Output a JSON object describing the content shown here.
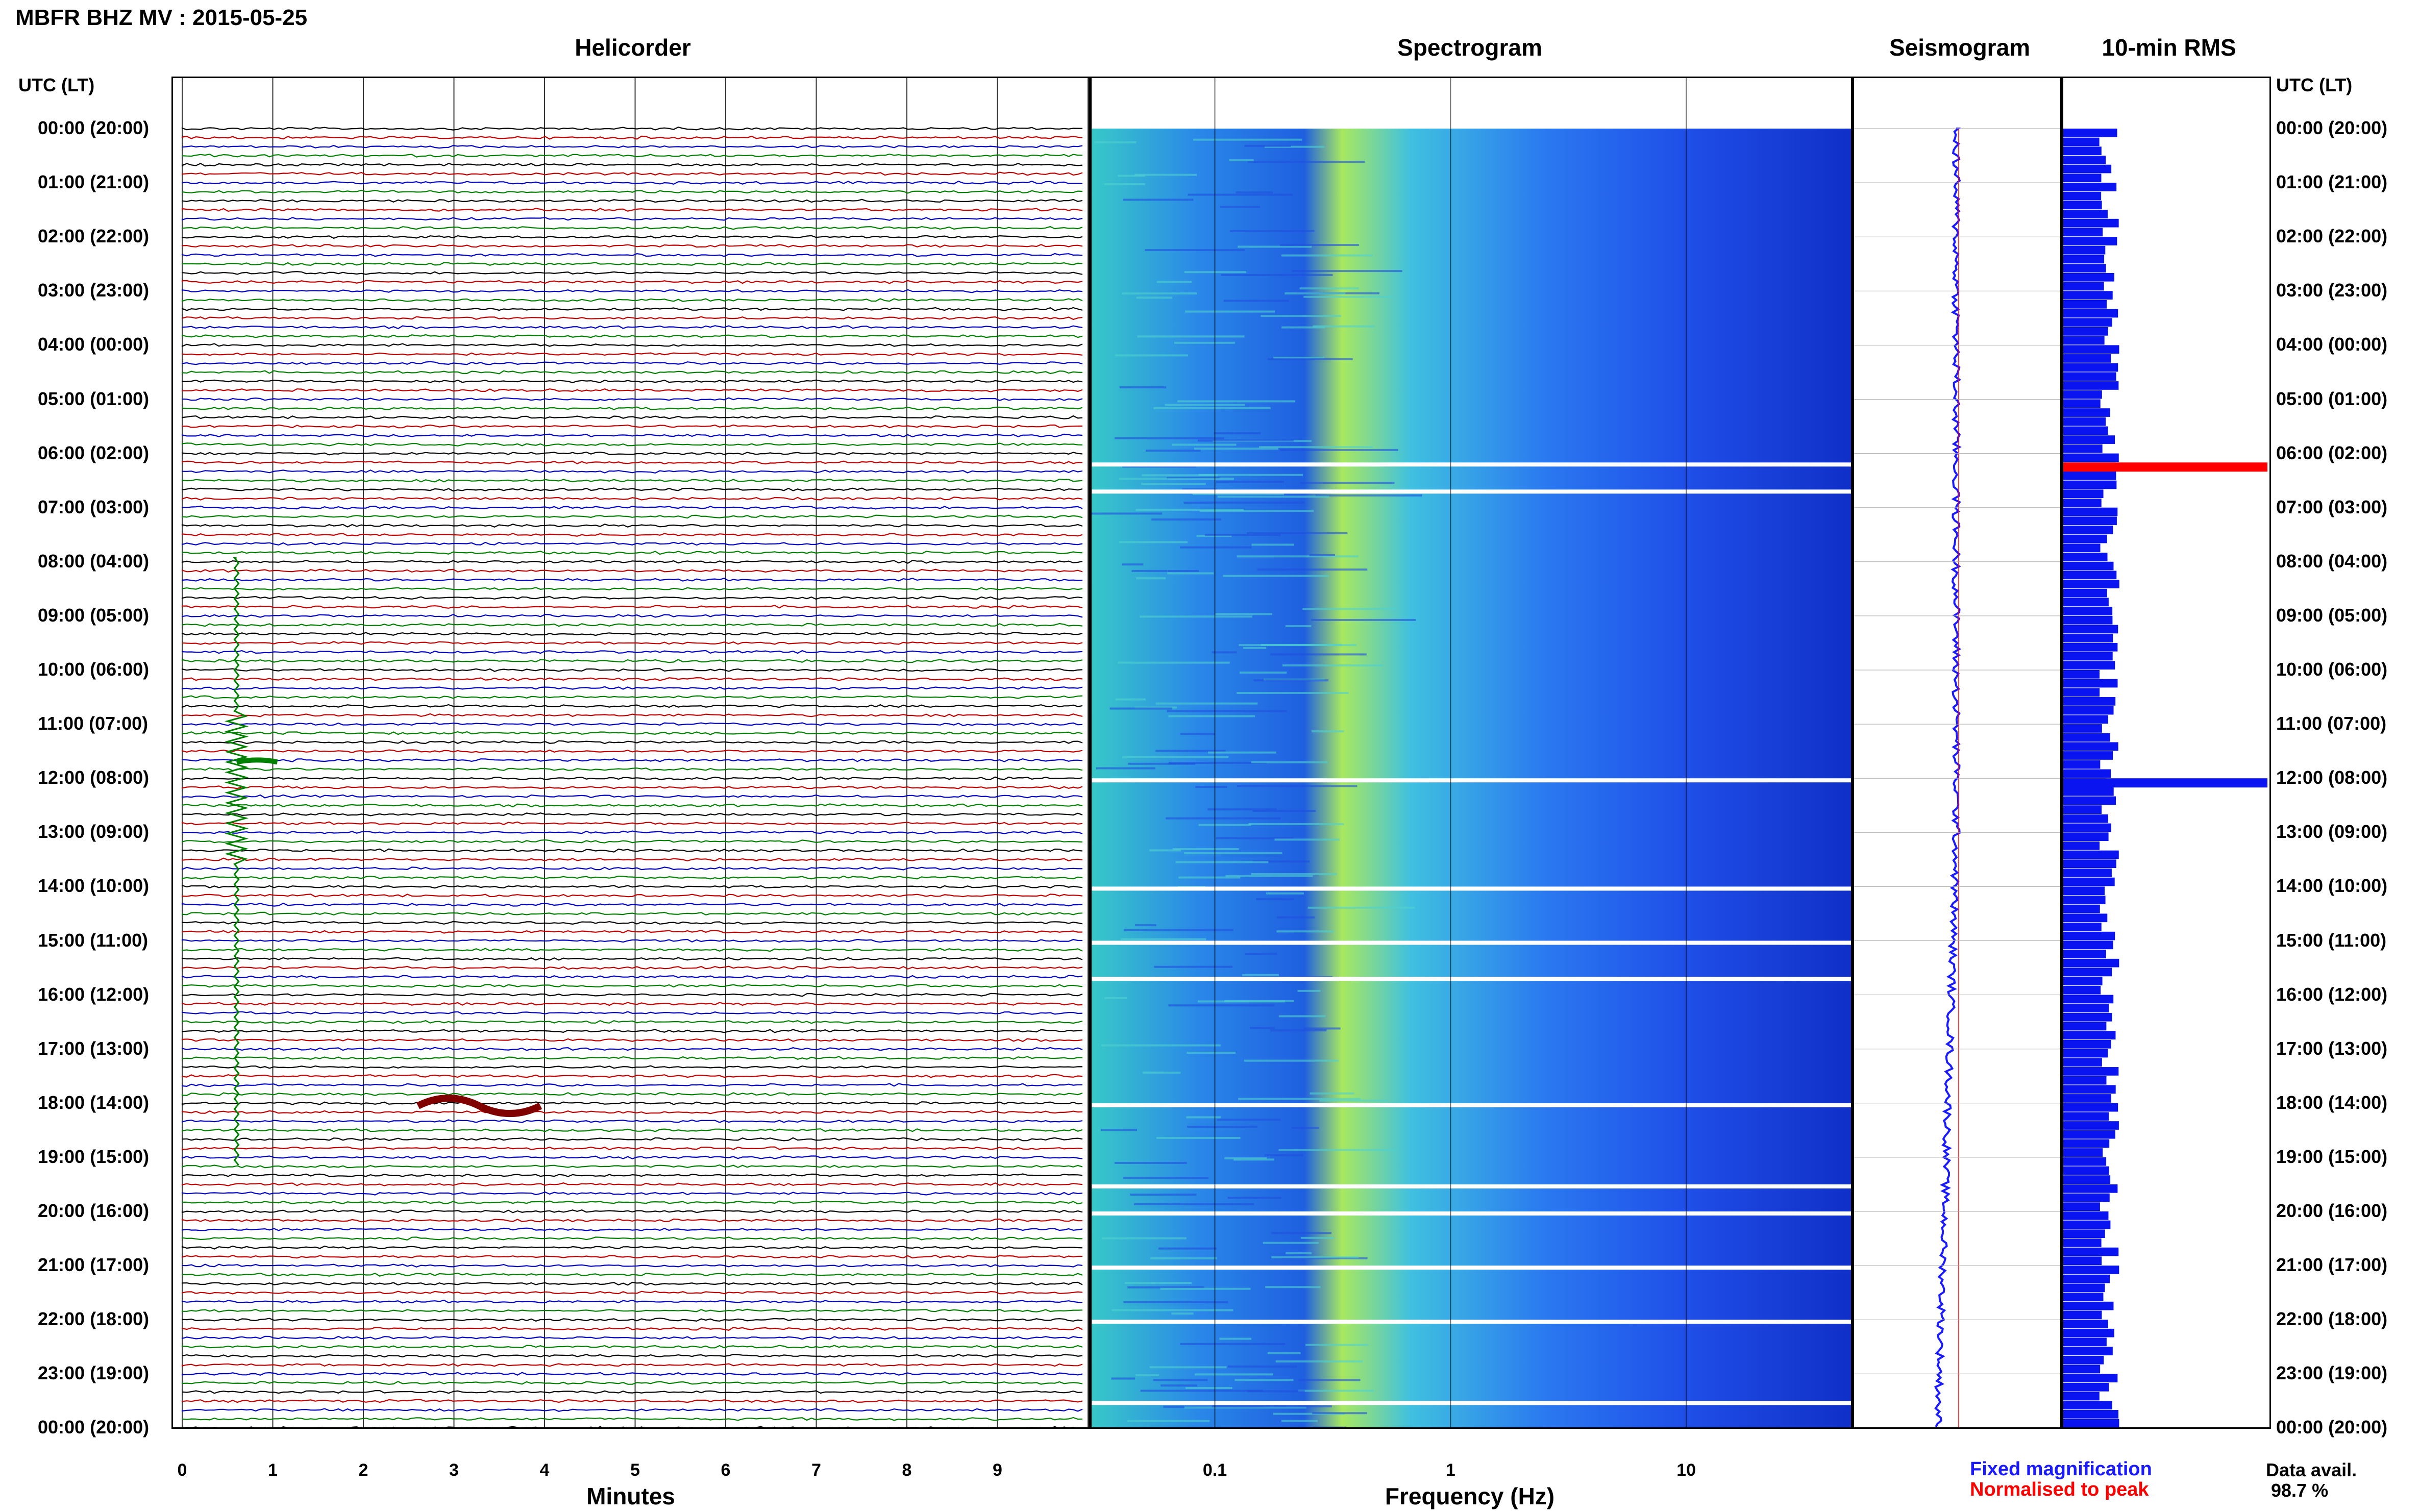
{
  "header": {
    "title": "MBFR BHZ MV : 2015-05-25"
  },
  "panels": {
    "helicorder": "Helicorder",
    "spectrogram": "Spectrogram",
    "seismogram": "Seismogram",
    "rms": "10-min RMS"
  },
  "axes": {
    "utc_label_left": "UTC (LT)",
    "utc_label_right": "UTC (LT)",
    "time_labels": [
      "00:00 (20:00)",
      "01:00 (21:00)",
      "02:00 (22:00)",
      "03:00 (23:00)",
      "04:00 (00:00)",
      "05:00 (01:00)",
      "06:00 (02:00)",
      "07:00 (03:00)",
      "08:00 (04:00)",
      "09:00 (05:00)",
      "10:00 (06:00)",
      "11:00 (07:00)",
      "12:00 (08:00)",
      "13:00 (09:00)",
      "14:00 (10:00)",
      "15:00 (11:00)",
      "16:00 (12:00)",
      "17:00 (13:00)",
      "18:00 (14:00)",
      "19:00 (15:00)",
      "20:00 (16:00)",
      "21:00 (17:00)",
      "22:00 (18:00)",
      "23:00 (19:00)",
      "00:00 (20:00)"
    ],
    "minutes_ticks": [
      "0",
      "1",
      "2",
      "3",
      "4",
      "5",
      "6",
      "7",
      "8",
      "9"
    ],
    "minutes_label": "Minutes",
    "freq_ticks": [
      "0.1",
      "1",
      "10"
    ],
    "freq_label": "Frequency (Hz)"
  },
  "legend": {
    "fixed": "Fixed magnification",
    "normalised": "Normalised to peak",
    "fixed_color": "#1a1aff",
    "normalised_color": "#ff0000"
  },
  "availability": {
    "label": "Data avail.",
    "value": "98.7 %"
  },
  "colors": {
    "trace_colors": [
      "#000000",
      "#c00000",
      "#0000c0",
      "#008000"
    ],
    "rms_bar": "#0a14f0",
    "rms_peak": "#ff0000"
  },
  "chart_data": [
    {
      "type": "line",
      "title": "Helicorder",
      "xlabel": "Minutes",
      "xlim": [
        0,
        10
      ],
      "ylabel": "UTC (LT)",
      "rows": 144,
      "events": [
        {
          "time": "11:40",
          "minute": 0.6,
          "label": "large event"
        },
        {
          "time": "18:00",
          "minute": 3.0,
          "label": "burst"
        }
      ]
    },
    {
      "type": "heatmap",
      "title": "Spectrogram",
      "xlabel": "Frequency (Hz)",
      "xscale": "log",
      "xlim": [
        0.03,
        50
      ],
      "data_gaps_utc": [
        "06:10",
        "06:40",
        "12:00",
        "14:00",
        "15:00",
        "15:40",
        "18:00",
        "19:30",
        "20:00",
        "21:00",
        "22:00",
        "23:30"
      ]
    },
    {
      "type": "line",
      "title": "Seismogram"
    },
    {
      "type": "bar",
      "title": "10-min RMS",
      "orientation": "horizontal",
      "peaks_utc": [
        {
          "time": "06:10",
          "color": "red",
          "value": 1.0
        },
        {
          "time": "12:00",
          "color": "blue",
          "value": 1.0
        }
      ]
    }
  ]
}
